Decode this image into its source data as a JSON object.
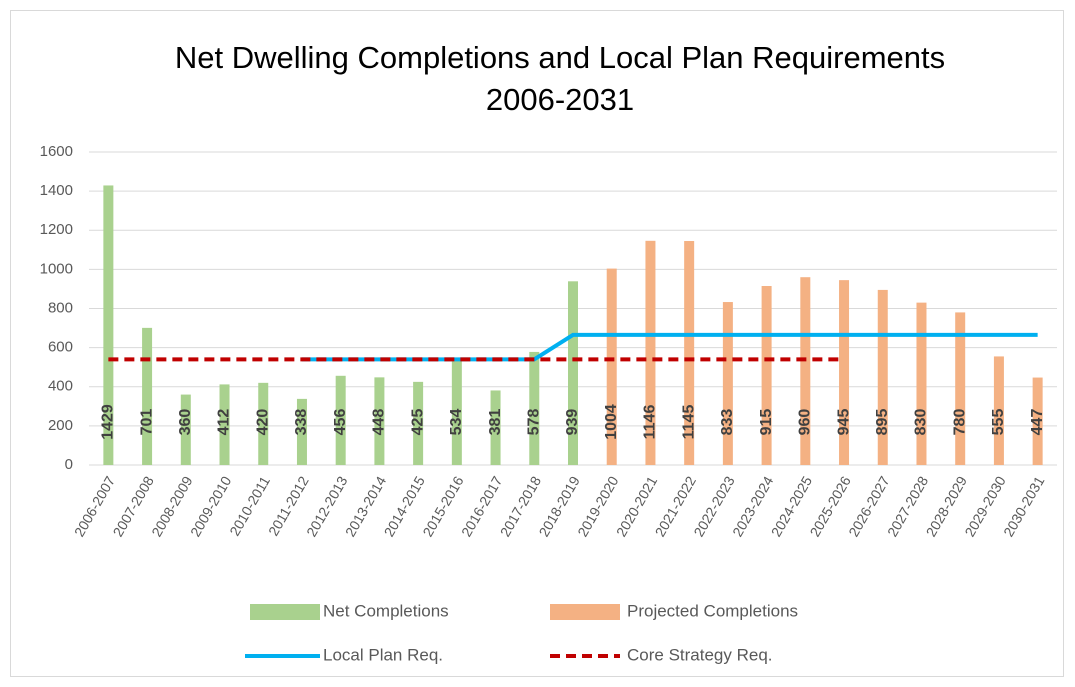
{
  "chart_data": {
    "type": "bar",
    "title": [
      "Net Dwelling Completions and Local Plan Requirements",
      "2006-2031"
    ],
    "categories": [
      "2006-2007",
      "2007-2008",
      "2008-2009",
      "2009-2010",
      "2010-2011",
      "2011-2012",
      "2012-2013",
      "2013-2014",
      "2014-2015",
      "2015-2016",
      "2016-2017",
      "2017-2018",
      "2018-2019",
      "2019-2020",
      "2020-2021",
      "2021-2022",
      "2022-2023",
      "2023-2024",
      "2024-2025",
      "2025-2026",
      "2026-2027",
      "2027-2028",
      "2028-2029",
      "2029-2030",
      "2030-2031"
    ],
    "series": [
      {
        "name": "Net Completions",
        "type": "bar",
        "color": "#a9d18e",
        "data_labels": true,
        "values": [
          1429,
          701,
          360,
          412,
          420,
          338,
          456,
          448,
          425,
          534,
          381,
          578,
          939,
          null,
          null,
          null,
          null,
          null,
          null,
          null,
          null,
          null,
          null,
          null,
          null
        ]
      },
      {
        "name": "Projected Completions",
        "type": "bar",
        "color": "#f4b183",
        "data_labels": true,
        "values": [
          null,
          null,
          null,
          null,
          null,
          null,
          null,
          null,
          null,
          null,
          null,
          null,
          null,
          1004,
          1146,
          1145,
          833,
          915,
          960,
          945,
          895,
          830,
          780,
          555,
          447
        ]
      },
      {
        "name": "Local Plan Req.",
        "type": "line",
        "color": "#00b0f0",
        "dashed": false,
        "values": [
          null,
          null,
          null,
          null,
          null,
          540,
          540,
          540,
          540,
          540,
          540,
          540,
          665,
          665,
          665,
          665,
          665,
          665,
          665,
          665,
          665,
          665,
          665,
          665,
          665
        ]
      },
      {
        "name": "Core Strategy Req.",
        "type": "line",
        "color": "#c00000",
        "dashed": true,
        "values": [
          540,
          540,
          540,
          540,
          540,
          540,
          540,
          540,
          540,
          540,
          540,
          540,
          540,
          540,
          540,
          540,
          540,
          540,
          540,
          540,
          null,
          null,
          null,
          null,
          null
        ]
      }
    ],
    "ylim": [
      0,
      1600
    ],
    "yticks": [
      0,
      200,
      400,
      600,
      800,
      1000,
      1200,
      1400,
      1600
    ],
    "grid": true,
    "legend": "bottom"
  }
}
